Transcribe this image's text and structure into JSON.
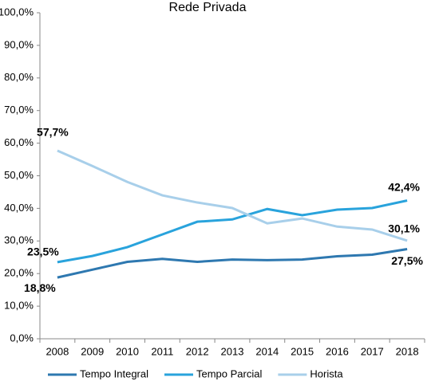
{
  "chart_data": {
    "type": "line",
    "title": "Rede Privada",
    "categories": [
      "2008",
      "2009",
      "2010",
      "2011",
      "2012",
      "2013",
      "2014",
      "2015",
      "2016",
      "2017",
      "2018"
    ],
    "series": [
      {
        "name": "Tempo Integral",
        "color": "#2e78b0",
        "values": [
          18.8,
          21.2,
          23.6,
          24.5,
          23.6,
          24.3,
          24.1,
          24.3,
          25.3,
          25.8,
          27.5
        ],
        "value_labels": [
          "18,8%",
          null,
          null,
          null,
          null,
          null,
          null,
          null,
          null,
          null,
          "27,5%"
        ]
      },
      {
        "name": "Tempo Parcial",
        "color": "#29a3dc",
        "values": [
          23.5,
          25.4,
          28.1,
          32.0,
          35.9,
          36.6,
          39.8,
          37.9,
          39.6,
          40.1,
          42.4
        ],
        "value_labels": [
          "23,5%",
          null,
          null,
          null,
          null,
          null,
          null,
          null,
          null,
          null,
          "42,4%"
        ]
      },
      {
        "name": "Horista",
        "color": "#a8cfea",
        "values": [
          57.7,
          53.0,
          48.1,
          44.0,
          41.8,
          40.1,
          35.4,
          36.9,
          34.4,
          33.5,
          30.1
        ],
        "value_labels": [
          "57,7%",
          null,
          null,
          null,
          null,
          null,
          null,
          null,
          null,
          null,
          "30,1%"
        ]
      }
    ],
    "ylim": [
      0,
      100
    ],
    "yticks": [
      {
        "value": 0,
        "label": "0,0%"
      },
      {
        "value": 10,
        "label": "10,0%"
      },
      {
        "value": 20,
        "label": "20,0%"
      },
      {
        "value": 30,
        "label": "30,0%"
      },
      {
        "value": 40,
        "label": "40,0%"
      },
      {
        "value": 50,
        "label": "50,0%"
      },
      {
        "value": 60,
        "label": "60,0%"
      },
      {
        "value": 70,
        "label": "70,0%"
      },
      {
        "value": 80,
        "label": "80,0%"
      },
      {
        "value": 90,
        "label": "90,0%"
      },
      {
        "value": 100,
        "label": "100,0%"
      }
    ],
    "legend": "bottom"
  }
}
